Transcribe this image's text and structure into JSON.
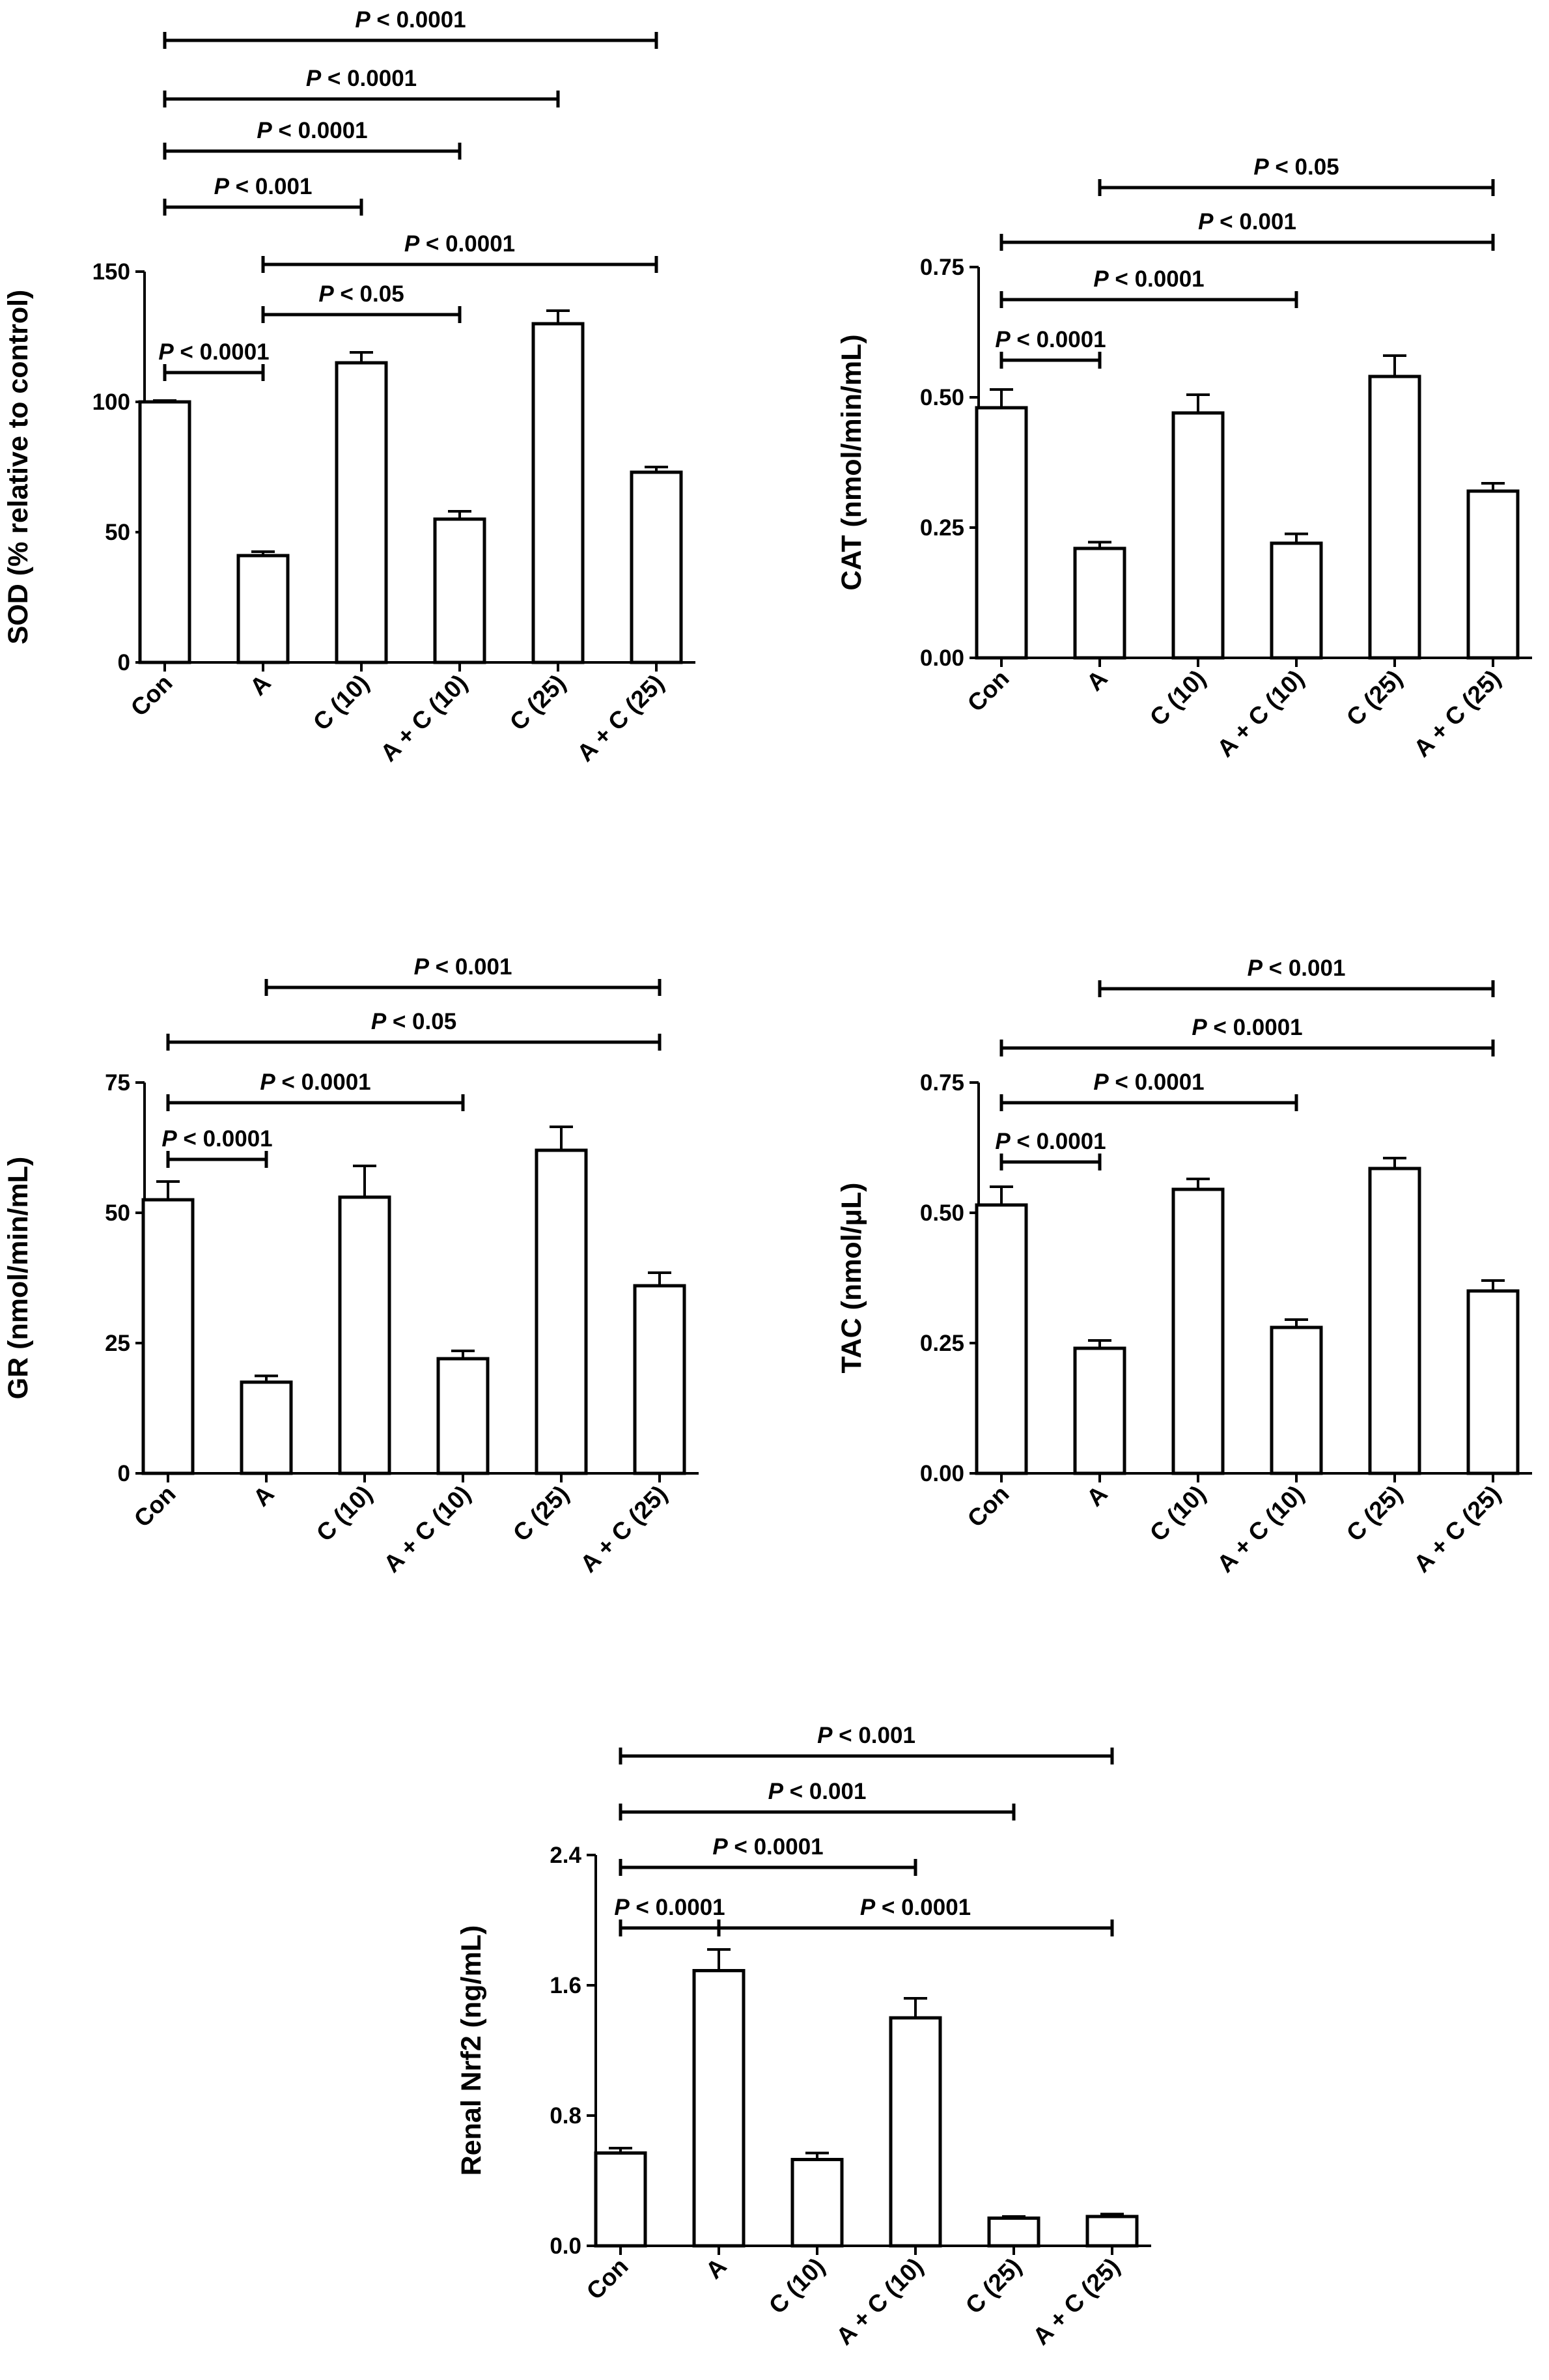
{
  "chart_data": [
    {
      "type": "bar",
      "ylabel": "SOD (% relative to control)",
      "ylim": [
        0,
        150
      ],
      "yticks": [
        "0",
        "50",
        "100",
        "150"
      ],
      "categories": [
        "Con",
        "A",
        "C (10)",
        "A + C (10)",
        "C (25)",
        "A + C (25)"
      ],
      "values": [
        100,
        41,
        115,
        55,
        130,
        73
      ],
      "errors": [
        0.5,
        1.5,
        4,
        3,
        5,
        2
      ],
      "comparisons": [
        {
          "from": 0,
          "to": 5,
          "p_prefix": "P",
          "p_text": " < 0.0001"
        },
        {
          "from": 0,
          "to": 4,
          "p_prefix": "P",
          "p_text": " < 0.0001"
        },
        {
          "from": 0,
          "to": 3,
          "p_prefix": "P",
          "p_text": " < 0.0001"
        },
        {
          "from": 0,
          "to": 2,
          "p_prefix": "P",
          "p_text": " < 0.001"
        },
        {
          "from": 1,
          "to": 5,
          "p_prefix": "P",
          "p_text": " < 0.0001"
        },
        {
          "from": 1,
          "to": 3,
          "p_prefix": "P",
          "p_text": " < 0.05"
        },
        {
          "from": 0,
          "to": 1,
          "p_prefix": "P",
          "p_text": " < 0.0001"
        }
      ]
    },
    {
      "type": "bar",
      "ylabel": "CAT (nmol/min/mL)",
      "ylim": [
        0,
        0.75
      ],
      "yticks": [
        "0.00",
        "0.25",
        "0.50",
        "0.75"
      ],
      "categories": [
        "Con",
        "A",
        "C (10)",
        "A + C (10)",
        "C (25)",
        "A + C (25)"
      ],
      "values": [
        0.48,
        0.21,
        0.47,
        0.22,
        0.54,
        0.32
      ],
      "errors": [
        0.035,
        0.012,
        0.035,
        0.018,
        0.04,
        0.015
      ],
      "comparisons": [
        {
          "from": 1,
          "to": 5,
          "p_prefix": "P",
          "p_text": " < 0.05"
        },
        {
          "from": 0,
          "to": 5,
          "p_prefix": "P",
          "p_text": " < 0.001"
        },
        {
          "from": 0,
          "to": 3,
          "p_prefix": "P",
          "p_text": " < 0.0001"
        },
        {
          "from": 0,
          "to": 1,
          "p_prefix": "P",
          "p_text": " < 0.0001"
        }
      ]
    },
    {
      "type": "bar",
      "ylabel": "GR (nmol/min/mL)",
      "ylim": [
        0,
        75
      ],
      "yticks": [
        "0",
        "25",
        "50",
        "75"
      ],
      "categories": [
        "Con",
        "A",
        "C (10)",
        "A + C (10)",
        "C (25)",
        "A + C (25)"
      ],
      "values": [
        52.5,
        17.5,
        53,
        22,
        62,
        36
      ],
      "errors": [
        3.5,
        1.2,
        6,
        1.5,
        4.5,
        2.5
      ],
      "comparisons": [
        {
          "from": 1,
          "to": 5,
          "p_prefix": "P",
          "p_text": " < 0.001"
        },
        {
          "from": 0,
          "to": 5,
          "p_prefix": "P",
          "p_text": " < 0.05"
        },
        {
          "from": 0,
          "to": 3,
          "p_prefix": "P",
          "p_text": " < 0.0001"
        },
        {
          "from": 0,
          "to": 1,
          "p_prefix": "P",
          "p_text": " < 0.0001"
        }
      ]
    },
    {
      "type": "bar",
      "ylabel": "TAC (nmol/μL)",
      "ylim": [
        0,
        0.75
      ],
      "yticks": [
        "0.00",
        "0.25",
        "0.50",
        "0.75"
      ],
      "categories": [
        "Con",
        "A",
        "C (10)",
        "A + C (10)",
        "C (25)",
        "A + C (25)"
      ],
      "values": [
        0.515,
        0.24,
        0.545,
        0.28,
        0.585,
        0.35
      ],
      "errors": [
        0.035,
        0.015,
        0.02,
        0.015,
        0.02,
        0.02
      ],
      "comparisons": [
        {
          "from": 1,
          "to": 5,
          "p_prefix": "P",
          "p_text": " < 0.001"
        },
        {
          "from": 0,
          "to": 5,
          "p_prefix": "P",
          "p_text": " < 0.0001"
        },
        {
          "from": 0,
          "to": 3,
          "p_prefix": "P",
          "p_text": " < 0.0001"
        },
        {
          "from": 0,
          "to": 1,
          "p_prefix": "P",
          "p_text": " < 0.0001"
        }
      ]
    },
    {
      "type": "bar",
      "ylabel": "Renal  Nrf2 (ng/mL)",
      "ylim": [
        0,
        2.4
      ],
      "yticks": [
        "0.0",
        "0.8",
        "1.6",
        "2.4"
      ],
      "categories": [
        "Con",
        "A",
        "C (10)",
        "A + C (10)",
        "C (25)",
        "A + C (25)"
      ],
      "values": [
        0.57,
        1.69,
        0.53,
        1.4,
        0.17,
        0.18
      ],
      "errors": [
        0.03,
        0.13,
        0.04,
        0.12,
        0.01,
        0.015
      ],
      "comparisons": [
        {
          "from": 0,
          "to": 5,
          "p_prefix": "P",
          "p_text": " < 0.001"
        },
        {
          "from": 0,
          "to": 4,
          "p_prefix": "P",
          "p_text": " < 0.001"
        },
        {
          "from": 0,
          "to": 3,
          "p_prefix": "P",
          "p_text": " < 0.0001"
        },
        {
          "from": 0,
          "to": 1,
          "p_prefix": "P",
          "p_text": " < 0.0001"
        },
        {
          "from": 1,
          "to": 5,
          "p_prefix": "P",
          "p_text": " < 0.0001"
        }
      ]
    }
  ]
}
